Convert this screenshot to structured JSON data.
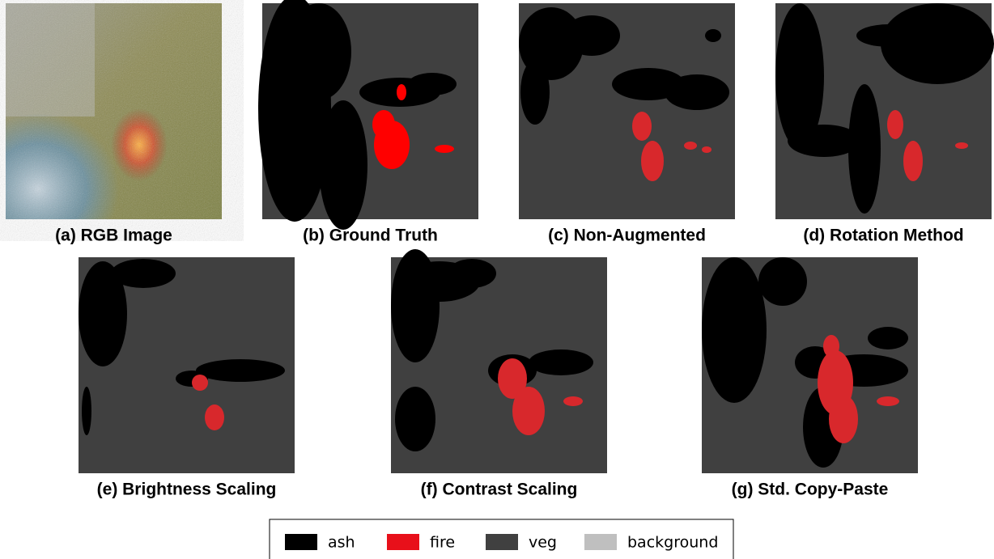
{
  "panels": [
    {
      "caption": "(a) RGB Image"
    },
    {
      "caption": "(b) Ground Truth"
    },
    {
      "caption": "(c) Non-Augmented"
    },
    {
      "caption": "(d) Rotation Method"
    },
    {
      "caption": "(e) Brightness Scaling"
    },
    {
      "caption": "(f) Contrast Scaling"
    },
    {
      "caption": "(g) Std. Copy-Paste"
    }
  ],
  "legend": [
    {
      "label": "ash",
      "color": "#000000"
    },
    {
      "label": "fire",
      "color": "#e8101a"
    },
    {
      "label": "veg",
      "color": "#404040"
    },
    {
      "label": "background",
      "color": "#bfbfbf"
    }
  ]
}
